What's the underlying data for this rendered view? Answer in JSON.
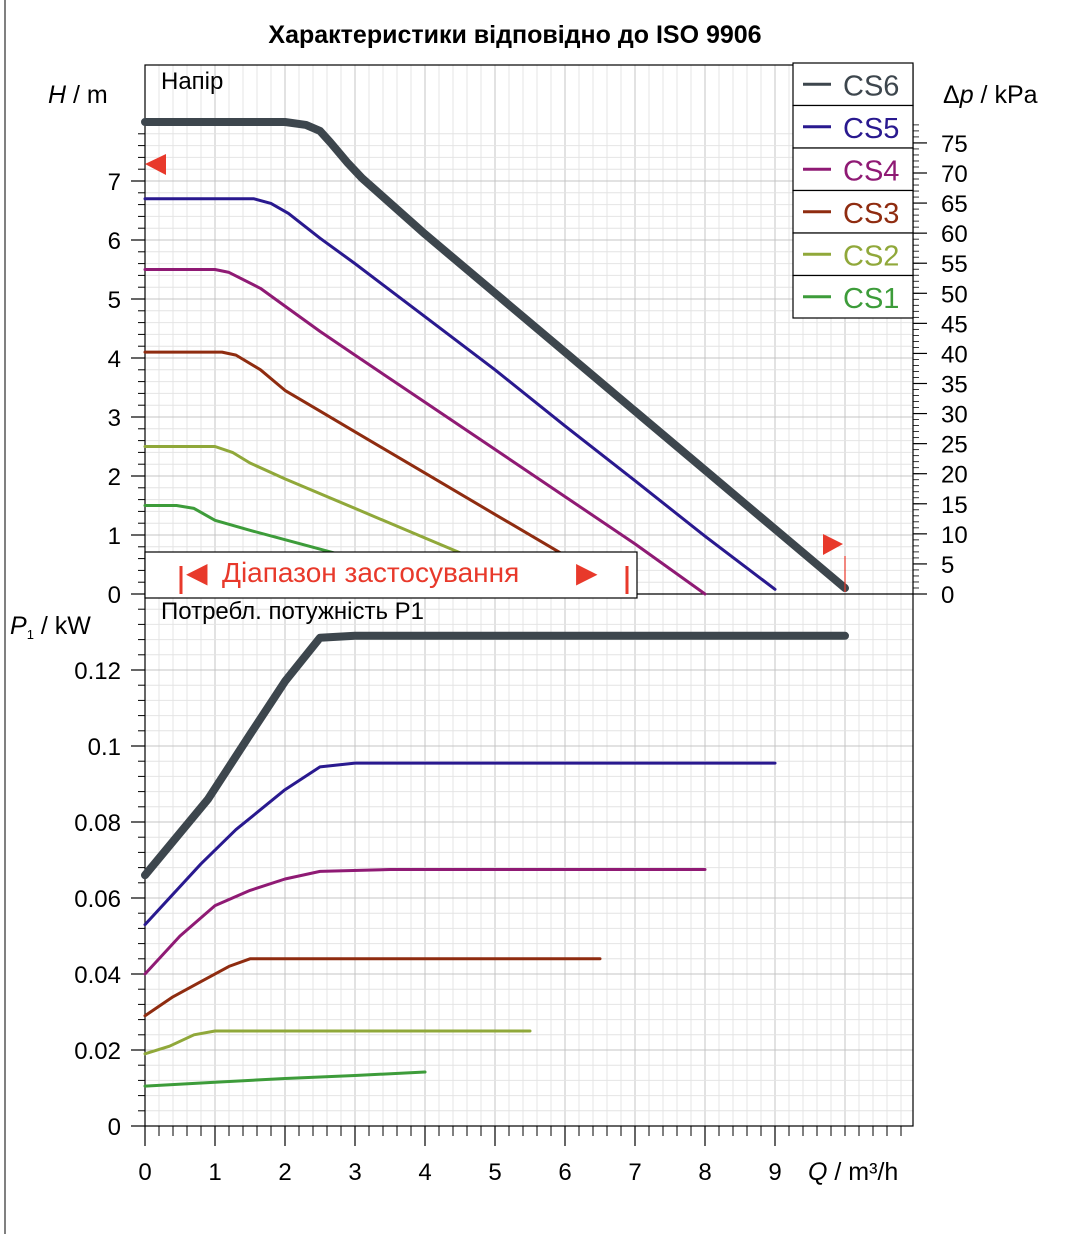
{
  "chart_title": "Характеристики відповідно до ISO 9906",
  "chart_data": [
    {
      "type": "line",
      "title": "Напір",
      "xlabel": "Q / m³/h",
      "ylabel": "H / m",
      "y2label": "Δp / kPa",
      "xlim": [
        0,
        10
      ],
      "ylim": [
        0,
        8
      ],
      "y2lim": [
        0,
        80
      ],
      "x_ticks": [
        "0",
        "1",
        "2",
        "3",
        "4",
        "5",
        "6",
        "7",
        "8",
        "9"
      ],
      "y_ticks": [
        "0",
        "1",
        "2",
        "3",
        "4",
        "5",
        "6",
        "7"
      ],
      "y2_ticks": [
        "0",
        "5",
        "10",
        "15",
        "20",
        "25",
        "30",
        "35",
        "40",
        "45",
        "50",
        "55",
        "60",
        "65",
        "70",
        "75"
      ],
      "grid": true,
      "legend_position": "top-right",
      "series": [
        {
          "name": "CS6",
          "color": "#3d464d",
          "points": [
            [
              0,
              8.0
            ],
            [
              2.0,
              8.0
            ],
            [
              2.3,
              7.95
            ],
            [
              2.5,
              7.85
            ],
            [
              2.65,
              7.65
            ],
            [
              2.9,
              7.3
            ],
            [
              3.1,
              7.05
            ],
            [
              4.0,
              6.1
            ],
            [
              5.0,
              5.1
            ],
            [
              6.0,
              4.1
            ],
            [
              7.0,
              3.1
            ],
            [
              8.0,
              2.1
            ],
            [
              9.0,
              1.1
            ],
            [
              10.0,
              0.1
            ]
          ]
        },
        {
          "name": "CS5",
          "color": "#29198f",
          "points": [
            [
              0,
              6.7
            ],
            [
              1.55,
              6.7
            ],
            [
              1.8,
              6.62
            ],
            [
              2.05,
              6.45
            ],
            [
              2.5,
              6.03
            ],
            [
              3.0,
              5.6
            ],
            [
              4.0,
              4.7
            ],
            [
              5.0,
              3.8
            ],
            [
              6.0,
              2.85
            ],
            [
              7.0,
              1.92
            ],
            [
              8.0,
              0.98
            ],
            [
              9.0,
              0.08
            ]
          ]
        },
        {
          "name": "CS4",
          "color": "#8f1a74",
          "points": [
            [
              0,
              5.5
            ],
            [
              1.0,
              5.5
            ],
            [
              1.2,
              5.45
            ],
            [
              1.65,
              5.18
            ],
            [
              2.0,
              4.88
            ],
            [
              2.5,
              4.45
            ],
            [
              3.0,
              4.05
            ],
            [
              4.0,
              3.25
            ],
            [
              5.0,
              2.45
            ],
            [
              6.0,
              1.65
            ],
            [
              7.0,
              0.85
            ],
            [
              8.0,
              0.0
            ]
          ]
        },
        {
          "name": "CS3",
          "color": "#8f2c10",
          "points": [
            [
              0,
              4.1
            ],
            [
              1.1,
              4.1
            ],
            [
              1.3,
              4.05
            ],
            [
              1.65,
              3.8
            ],
            [
              2.0,
              3.45
            ],
            [
              2.5,
              3.1
            ],
            [
              3.0,
              2.75
            ],
            [
              4.0,
              2.05
            ],
            [
              5.0,
              1.35
            ],
            [
              6.0,
              0.65
            ],
            [
              6.5,
              0.3
            ]
          ]
        },
        {
          "name": "CS2",
          "color": "#90a83a",
          "points": [
            [
              0,
              2.5
            ],
            [
              1.0,
              2.5
            ],
            [
              1.25,
              2.4
            ],
            [
              1.5,
              2.22
            ],
            [
              2.0,
              1.95
            ],
            [
              3.0,
              1.45
            ],
            [
              4.0,
              0.95
            ],
            [
              5.0,
              0.45
            ],
            [
              5.5,
              0.2
            ]
          ]
        },
        {
          "name": "CS1",
          "color": "#3d9c3a",
          "points": [
            [
              0,
              1.5
            ],
            [
              0.45,
              1.5
            ],
            [
              0.7,
              1.45
            ],
            [
              1.0,
              1.25
            ],
            [
              1.5,
              1.08
            ],
            [
              2.0,
              0.92
            ],
            [
              3.0,
              0.6
            ],
            [
              4.0,
              0.3
            ]
          ]
        }
      ],
      "annotations": {
        "range_label": "Діапазон застосування",
        "range_left_arrow": "◀",
        "range_right_arrow": "▶",
        "range_color": "#e8392b"
      }
    },
    {
      "type": "line",
      "title": "Потребл. потужність P1",
      "xlabel": "Q / m³/h",
      "ylabel": "P₁ / kW",
      "xlim": [
        0,
        10
      ],
      "ylim": [
        0,
        0.14
      ],
      "x_ticks": [
        "0",
        "1",
        "2",
        "3",
        "4",
        "5",
        "6",
        "7",
        "8",
        "9"
      ],
      "y_ticks": [
        "0",
        "0.02",
        "0.04",
        "0.06",
        "0.08",
        "0.1",
        "0.12"
      ],
      "grid": true,
      "series": [
        {
          "name": "CS6",
          "color": "#3d464d",
          "points": [
            [
              0,
              0.066
            ],
            [
              0.9,
              0.086
            ],
            [
              1.5,
              0.103
            ],
            [
              2.0,
              0.117
            ],
            [
              2.5,
              0.1285
            ],
            [
              3.0,
              0.129
            ],
            [
              4.0,
              0.129
            ],
            [
              10.0,
              0.129
            ]
          ]
        },
        {
          "name": "CS5",
          "color": "#29198f",
          "points": [
            [
              0,
              0.053
            ],
            [
              0.4,
              0.061
            ],
            [
              0.8,
              0.069
            ],
            [
              1.3,
              0.078
            ],
            [
              2.0,
              0.0885
            ],
            [
              2.5,
              0.0945
            ],
            [
              3.0,
              0.0955
            ],
            [
              9.0,
              0.0955
            ]
          ]
        },
        {
          "name": "CS4",
          "color": "#8f1a74",
          "points": [
            [
              0,
              0.04
            ],
            [
              0.5,
              0.05
            ],
            [
              1.0,
              0.058
            ],
            [
              1.5,
              0.062
            ],
            [
              2.0,
              0.065
            ],
            [
              2.5,
              0.067
            ],
            [
              3.5,
              0.0675
            ],
            [
              8.0,
              0.0675
            ]
          ]
        },
        {
          "name": "CS3",
          "color": "#8f2c10",
          "points": [
            [
              0,
              0.029
            ],
            [
              0.4,
              0.034
            ],
            [
              0.8,
              0.038
            ],
            [
              1.2,
              0.042
            ],
            [
              1.5,
              0.044
            ],
            [
              2.0,
              0.044
            ],
            [
              6.5,
              0.044
            ]
          ]
        },
        {
          "name": "CS2",
          "color": "#90a83a",
          "points": [
            [
              0,
              0.019
            ],
            [
              0.35,
              0.021
            ],
            [
              0.7,
              0.024
            ],
            [
              1.0,
              0.025
            ],
            [
              5.5,
              0.025
            ]
          ]
        },
        {
          "name": "CS1",
          "color": "#3d9c3a",
          "points": [
            [
              0,
              0.0105
            ],
            [
              1.0,
              0.0115
            ],
            [
              2.0,
              0.0125
            ],
            [
              3.0,
              0.0133
            ],
            [
              4.0,
              0.0142
            ]
          ]
        }
      ]
    }
  ],
  "legend": [
    {
      "name": "CS6",
      "color": "#3d464d"
    },
    {
      "name": "CS5",
      "color": "#29198f"
    },
    {
      "name": "CS4",
      "color": "#8f1a74"
    },
    {
      "name": "CS3",
      "color": "#8f2c10"
    },
    {
      "name": "CS2",
      "color": "#90a83a"
    },
    {
      "name": "CS1",
      "color": "#3d9c3a"
    }
  ]
}
